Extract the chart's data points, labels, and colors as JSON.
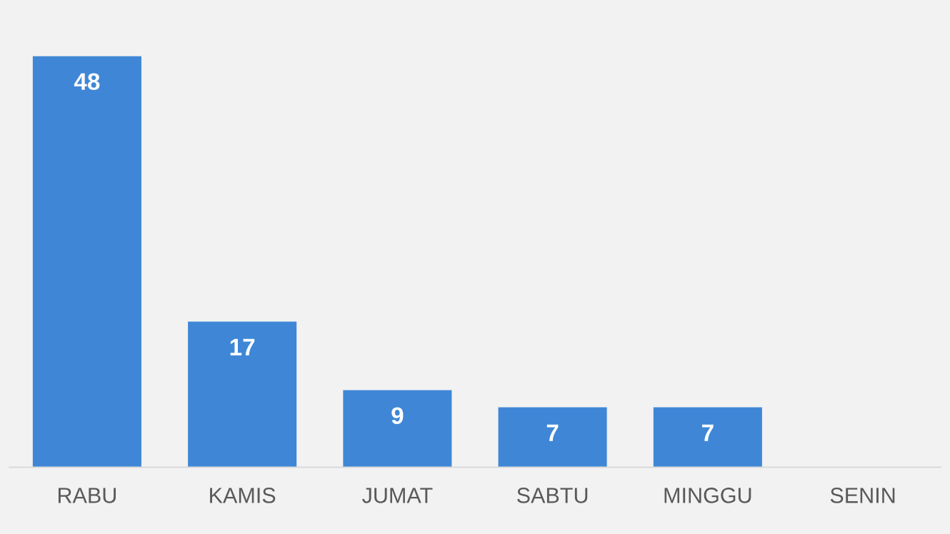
{
  "chart_data": {
    "type": "bar",
    "categories": [
      "RABU",
      "KAMIS",
      "JUMAT",
      "SABTU",
      "MINGGU",
      "SENIN"
    ],
    "values": [
      48,
      17,
      9,
      7,
      7,
      null
    ],
    "color": "#3f87d6",
    "data_labels": true,
    "grid": false,
    "legend": false
  }
}
